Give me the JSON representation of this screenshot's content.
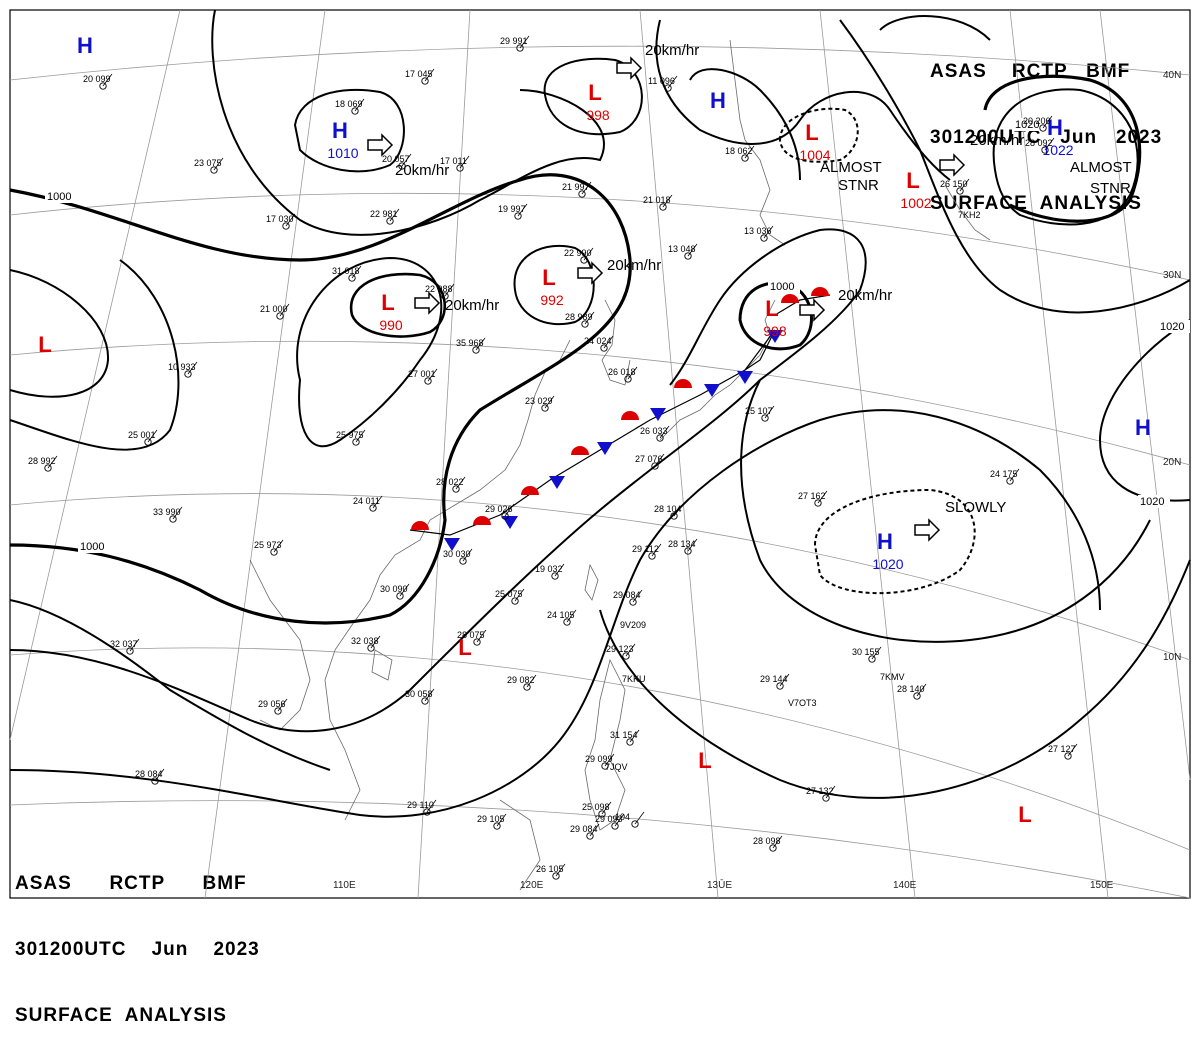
{
  "header": {
    "line1": "ASAS    RCTP   BMF",
    "line2": "301200UTC   Jun   2023",
    "line3": "SURFACE  ANALYSIS"
  },
  "footer": {
    "line1": "ASAS      RCTP      BMF",
    "line2": "301200UTC    Jun    2023",
    "line3": "SURFACE  ANALYSIS"
  },
  "lon_labels": [
    "110E",
    "120E",
    "13ŪE",
    "140E",
    "150E"
  ],
  "lat_labels": [
    "40N",
    "30N",
    "20N",
    "10N"
  ],
  "isobars": [
    "1000",
    "1000",
    "1000",
    "1020",
    "1020",
    "1020"
  ],
  "colors": {
    "high": "#1010cc",
    "low": "#dd0000",
    "front_red": "#dd0000",
    "front_blue": "#1010cc",
    "isobar": "#000000"
  },
  "centers": [
    {
      "type": "H",
      "value": "1010"
    },
    {
      "type": "H",
      "value": ""
    },
    {
      "type": "H",
      "value": ""
    },
    {
      "type": "H",
      "value": "1022"
    },
    {
      "type": "H",
      "value": ""
    },
    {
      "type": "H",
      "value": "1020"
    },
    {
      "type": "L",
      "value": "998"
    },
    {
      "type": "L",
      "value": "1004"
    },
    {
      "type": "L",
      "value": "1002"
    },
    {
      "type": "L",
      "value": "992"
    },
    {
      "type": "L",
      "value": "990"
    },
    {
      "type": "L",
      "value": ""
    },
    {
      "type": "L",
      "value": "998"
    },
    {
      "type": "L",
      "value": ""
    },
    {
      "type": "L",
      "value": ""
    },
    {
      "type": "L",
      "value": ""
    }
  ],
  "motions": [
    {
      "text": "20km/hr"
    },
    {
      "text": "20km/hr"
    },
    {
      "text": "20km/hr"
    },
    {
      "text": "20km/hr"
    },
    {
      "text": "20km/hr"
    },
    {
      "text": "20km/hr"
    },
    {
      "text": "SLOWLY"
    }
  ],
  "annotations": [
    "ALMOST",
    "STNR",
    "ALMOST",
    "STNR"
  ],
  "stations": [
    "20 099",
    "17 045",
    "29 991",
    "11 096",
    "18 069",
    "17 011",
    "21 997",
    "19 997",
    "22 990",
    "13 048",
    "23 075",
    "17 030",
    "22 981",
    "31 018",
    "35 968",
    "21 000",
    "10 933",
    "27 001",
    "25 001",
    "28 992",
    "33 990",
    "28 022",
    "29 026",
    "24 011",
    "25 973",
    "30 030",
    "28 075",
    "32 038",
    "29 056",
    "30 058",
    "28 084",
    "29 110",
    "29 105",
    "26 105",
    "29 082",
    "25 075",
    "24 105",
    "29 084",
    "29 123",
    "28 104",
    "29 112",
    "28 134",
    "25 107",
    "26 033",
    "27 076",
    "31 154",
    "29 099",
    "25 098",
    "104",
    "27 162",
    "24 175",
    "30 155",
    "29 144",
    "28 140",
    "27 127",
    "27 132",
    "28 098",
    "20 206",
    "28 092",
    "18 062",
    "13 036",
    "29 093",
    "29 084",
    "26 018",
    "24 024",
    "23 029",
    "21 018",
    "20 057",
    "28 989",
    "32 037",
    "25 975",
    "22 988",
    "30 090",
    "19 032",
    "26 150"
  ],
  "station_ids": [
    "7KKU",
    "7JQV",
    "V7OT3",
    "7KMV",
    "9V209",
    "7KH2"
  ]
}
